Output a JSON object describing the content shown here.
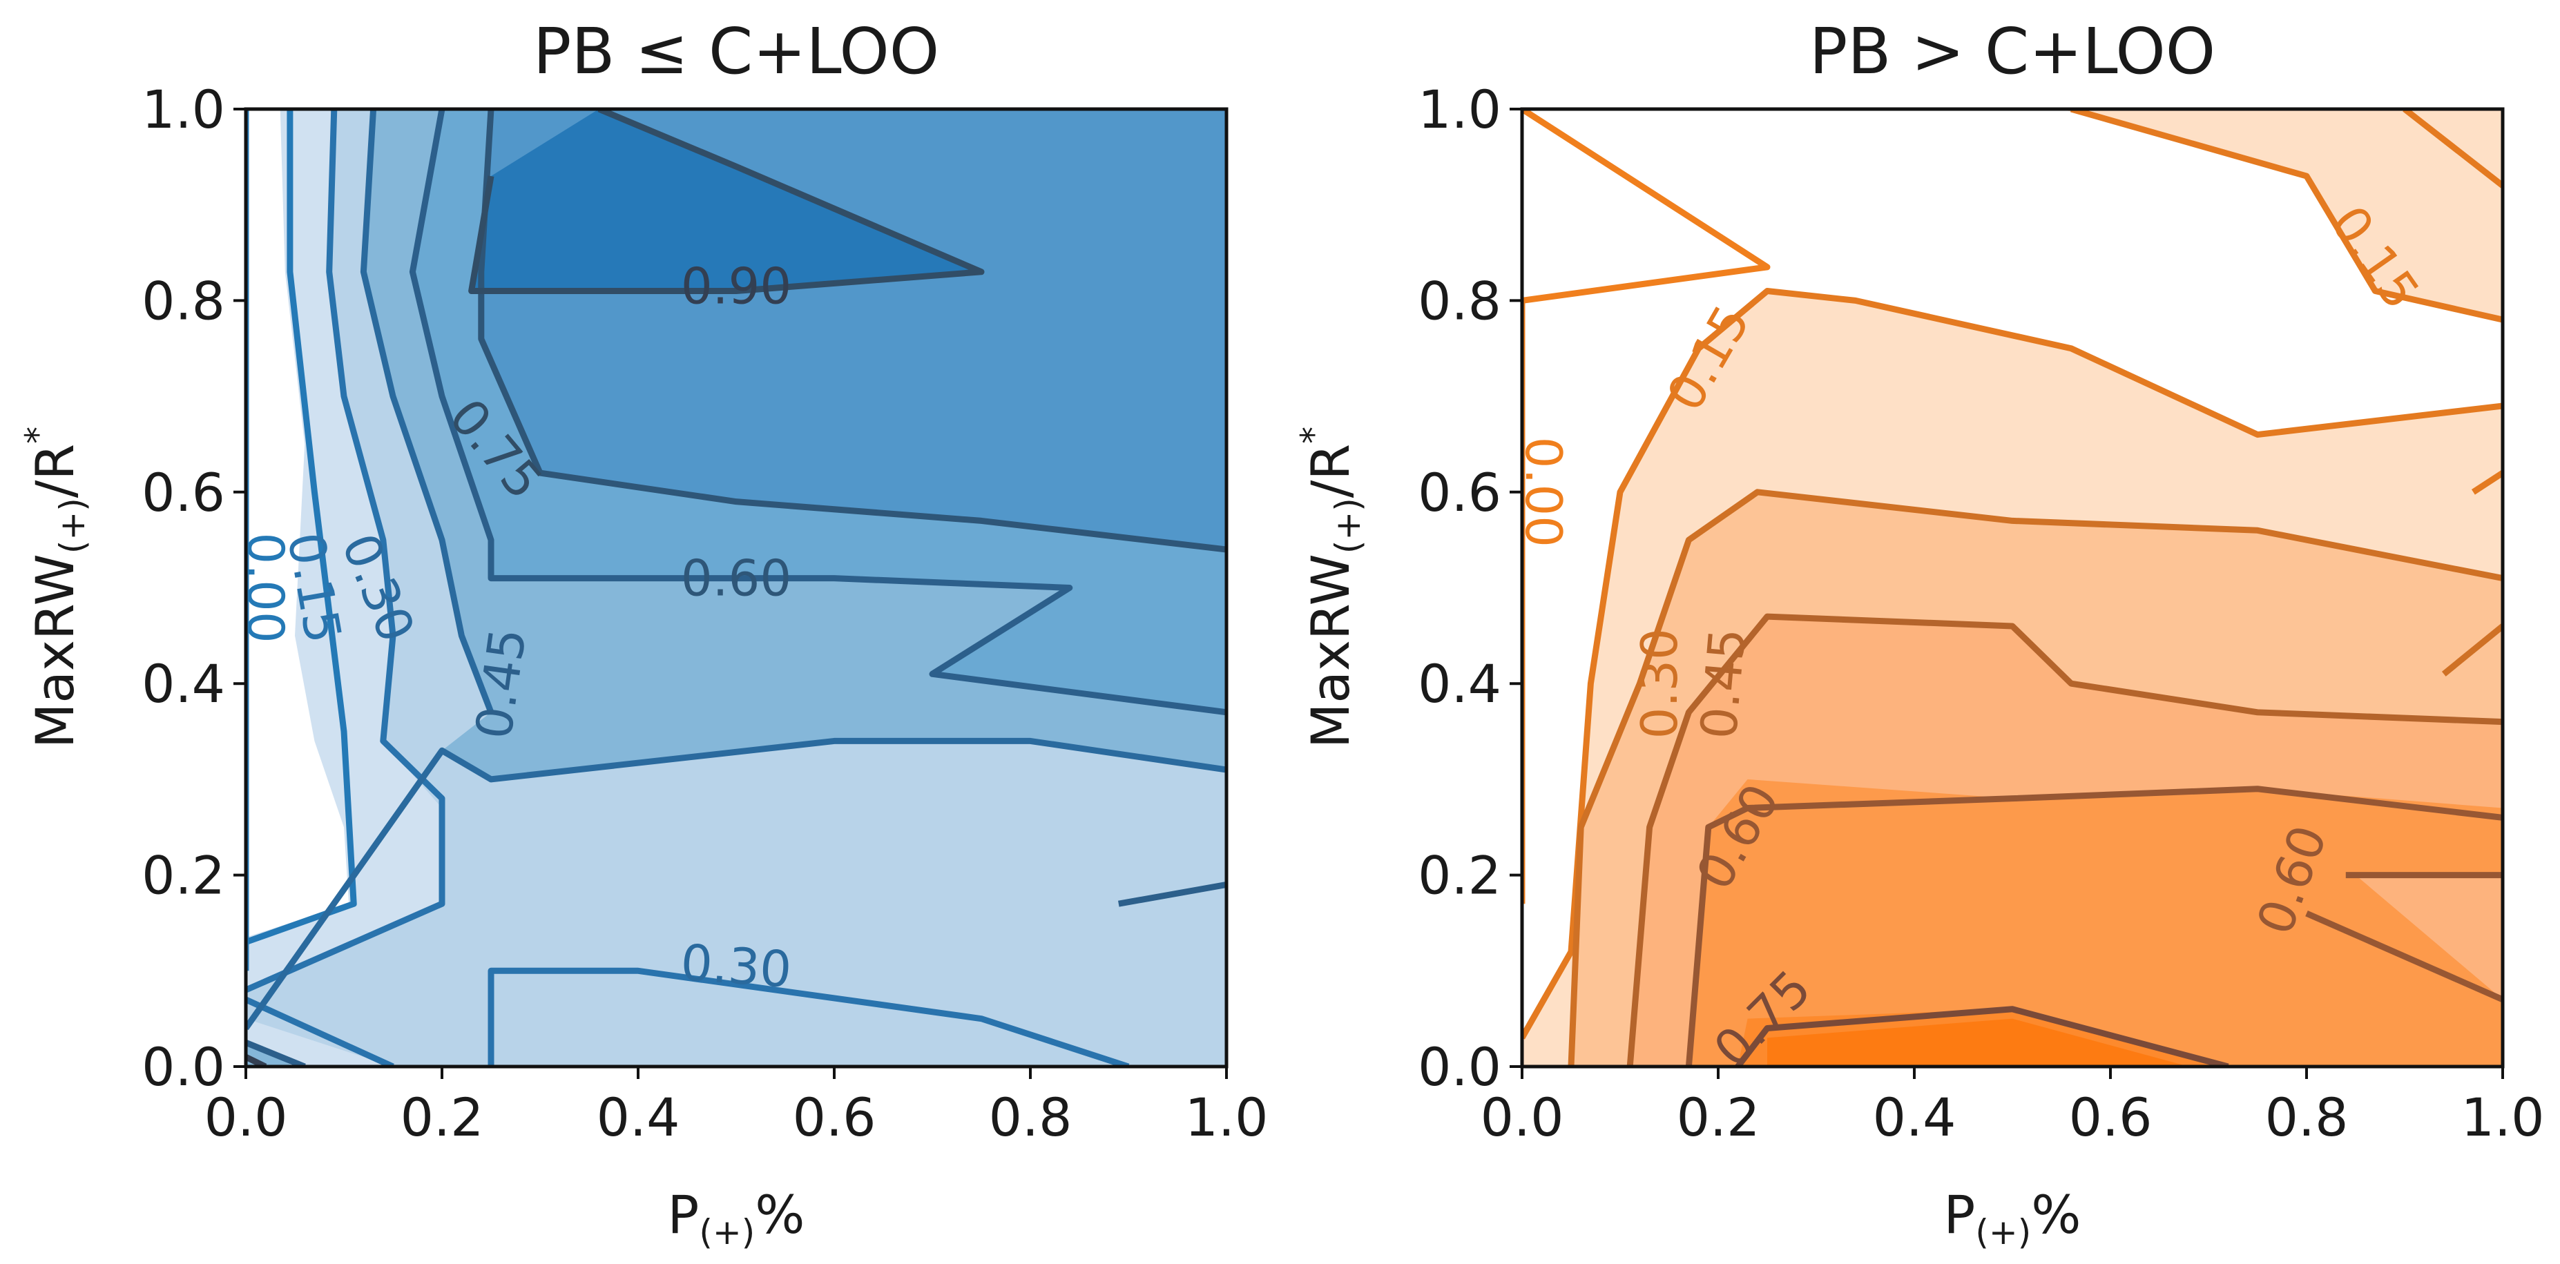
{
  "figure": {
    "panels": [
      {
        "title": "PB ≤ C+LOO",
        "xlabel": {
          "main": "P",
          "sub": "(+)",
          "suffix": "%"
        },
        "ylabel": {
          "main": "MaxRW",
          "sub": "(+)",
          "suffix": "/R",
          "sup": "*"
        }
      },
      {
        "title": "PB > C+LOO",
        "xlabel": {
          "main": "P",
          "sub": "(+)",
          "suffix": "%"
        },
        "ylabel": {
          "main": "MaxRW",
          "sub": "(+)",
          "suffix": "/R",
          "sup": "*"
        }
      }
    ]
  },
  "chart_data": [
    {
      "type": "contour",
      "title": "PB ≤ C+LOO",
      "xlabel": "P(+)%",
      "ylabel": "MaxRW(+)/R*",
      "xlim": [
        0,
        1
      ],
      "ylim": [
        0,
        1
      ],
      "xticks": [
        "0.0",
        "0.2",
        "0.4",
        "0.6",
        "0.8",
        "1.0"
      ],
      "yticks": [
        "0.0",
        "0.2",
        "0.4",
        "0.6",
        "0.8",
        "1.0"
      ],
      "colormap": "Blues",
      "levels": [
        0.0,
        0.15,
        0.3,
        0.45,
        0.6,
        0.75,
        0.9
      ],
      "level_colors": [
        "#ffffff",
        "#d0e1f1",
        "#b8d3e9",
        "#85b7d9",
        "#6aa9d3",
        "#5297ca",
        "#2679b8"
      ],
      "line_colors": [
        "#2479b6",
        "#2973ad",
        "#2a6a9e",
        "#2c5f8b",
        "#2e5678",
        "#314d66",
        "#333f52"
      ],
      "contour_labels": [
        {
          "text": "0.00",
          "level": 0.0,
          "x": 0.02,
          "y": 0.5,
          "rot": 90
        },
        {
          "text": "0.15",
          "level": 0.15,
          "x": 0.07,
          "y": 0.5,
          "rot": 80
        },
        {
          "text": "0.30",
          "level": 0.3,
          "x": 0.135,
          "y": 0.5,
          "rot": 68
        },
        {
          "text": "0.45",
          "level": 0.45,
          "x": 0.26,
          "y": 0.4,
          "rot": -82
        },
        {
          "text": "0.60",
          "level": 0.6,
          "x": 0.5,
          "y": 0.51,
          "rot": 0
        },
        {
          "text": "0.75",
          "level": 0.75,
          "x": 0.255,
          "y": 0.645,
          "rot": 50
        },
        {
          "text": "0.90",
          "level": 0.9,
          "x": 0.5,
          "y": 0.815,
          "rot": 0
        },
        {
          "text": "0.30",
          "level": 0.3,
          "x": 0.5,
          "y": 0.105,
          "rot": 4
        }
      ]
    },
    {
      "type": "contour",
      "title": "PB > C+LOO",
      "xlabel": "P(+)%",
      "ylabel": "MaxRW(+)/R*",
      "xlim": [
        0,
        1
      ],
      "ylim": [
        0,
        1
      ],
      "xticks": [
        "0.0",
        "0.2",
        "0.4",
        "0.6",
        "0.8",
        "1.0"
      ],
      "yticks": [
        "0.0",
        "0.2",
        "0.4",
        "0.6",
        "0.8",
        "1.0"
      ],
      "colormap": "Oranges",
      "levels": [
        0.0,
        0.15,
        0.3,
        0.45,
        0.6,
        0.75,
        0.9
      ],
      "level_colors": [
        "#ffffff",
        "#fee0c6",
        "#fdc496",
        "#fdb37d",
        "#fd9a4b",
        "#fd8a2d",
        "#fd7b12"
      ],
      "line_colors": [
        "#f07f1d",
        "#e47a20",
        "#cf7125",
        "#b4642b",
        "#975733",
        "#7a4a38",
        "#5c3c3c"
      ],
      "contour_labels": [
        {
          "text": "0.00",
          "level": 0.0,
          "x": 0.022,
          "y": 0.6,
          "rot": 90
        },
        {
          "text": "0.15",
          "level": 0.15,
          "x": 0.19,
          "y": 0.74,
          "rot": -60
        },
        {
          "text": "0.15",
          "level": 0.15,
          "x": 0.87,
          "y": 0.845,
          "rot": 55
        },
        {
          "text": "0.30",
          "level": 0.3,
          "x": 0.14,
          "y": 0.4,
          "rot": -90
        },
        {
          "text": "0.45",
          "level": 0.45,
          "x": 0.205,
          "y": 0.4,
          "rot": -85
        },
        {
          "text": "0.60",
          "level": 0.6,
          "x": 0.22,
          "y": 0.24,
          "rot": -60
        },
        {
          "text": "0.60",
          "level": 0.6,
          "x": 0.785,
          "y": 0.195,
          "rot": -70
        },
        {
          "text": "0.75",
          "level": 0.75,
          "x": 0.245,
          "y": 0.05,
          "rot": -45
        }
      ]
    }
  ]
}
